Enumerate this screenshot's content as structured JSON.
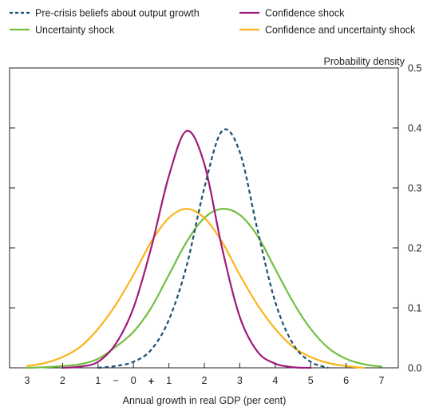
{
  "chart_data": {
    "type": "line",
    "xlabel": "Annual growth in real GDP (per cent)",
    "ylabel": "Probability density",
    "xlim": [
      -3,
      7
    ],
    "ylim": [
      0,
      0.5
    ],
    "x_ticks": [
      -3,
      -2,
      -1,
      0,
      1,
      2,
      3,
      4,
      5,
      6,
      7
    ],
    "x_tick_labels": [
      "3",
      "2",
      "1",
      "0",
      "1",
      "2",
      "3",
      "4",
      "5",
      "6",
      "7"
    ],
    "x_sign_labels": {
      "minus": "−",
      "plus": "+"
    },
    "y_ticks": [
      0,
      0.1,
      0.2,
      0.3,
      0.4,
      0.5
    ],
    "y_tick_labels": [
      "0.0",
      "0.1",
      "0.2",
      "0.3",
      "0.4",
      "0.5"
    ],
    "grid": false,
    "legend_position": "top",
    "series": [
      {
        "name": "Pre-crisis beliefs about output growth",
        "color": "#1b4f72",
        "dash": true,
        "x": [
          -1,
          -0.5,
          0,
          0.5,
          1,
          1.5,
          2,
          2.5,
          3,
          3.5,
          4,
          4.5,
          5,
          5.5
        ],
        "y": [
          0.0,
          0.003,
          0.01,
          0.03,
          0.08,
          0.17,
          0.3,
          0.395,
          0.36,
          0.23,
          0.11,
          0.04,
          0.01,
          0.0
        ]
      },
      {
        "name": "Confidence shock",
        "color": "#a0197b",
        "dash": false,
        "x": [
          -2,
          -1.5,
          -1,
          -0.5,
          0,
          0.5,
          1,
          1.5,
          2,
          2.5,
          3,
          3.5,
          4,
          4.5,
          5
        ],
        "y": [
          0.0,
          0.002,
          0.01,
          0.04,
          0.1,
          0.2,
          0.32,
          0.395,
          0.34,
          0.2,
          0.085,
          0.027,
          0.007,
          0.001,
          0.0
        ]
      },
      {
        "name": "Uncertainty shock",
        "color": "#73bf44",
        "dash": false,
        "x": [
          -3,
          -2.5,
          -2,
          -1.5,
          -1,
          -0.5,
          0,
          0.5,
          1,
          1.5,
          2,
          2.5,
          3,
          3.5,
          4,
          4.5,
          5,
          5.5,
          6,
          6.5,
          7
        ],
        "y": [
          0.0,
          0.001,
          0.003,
          0.006,
          0.015,
          0.035,
          0.06,
          0.1,
          0.155,
          0.21,
          0.25,
          0.265,
          0.255,
          0.22,
          0.165,
          0.11,
          0.065,
          0.033,
          0.015,
          0.006,
          0.002
        ]
      },
      {
        "name": "Confidence and uncertainty shock",
        "color": "#f9b51b",
        "dash": false,
        "x": [
          -3,
          -2.5,
          -2,
          -1.5,
          -1,
          -0.5,
          0,
          0.5,
          1,
          1.5,
          2,
          2.5,
          3,
          3.5,
          4,
          4.5,
          5,
          5.5,
          6,
          6.5
        ],
        "y": [
          0.003,
          0.008,
          0.018,
          0.035,
          0.065,
          0.105,
          0.155,
          0.21,
          0.25,
          0.265,
          0.25,
          0.21,
          0.155,
          0.105,
          0.065,
          0.035,
          0.018,
          0.008,
          0.003,
          0.0
        ]
      }
    ]
  }
}
